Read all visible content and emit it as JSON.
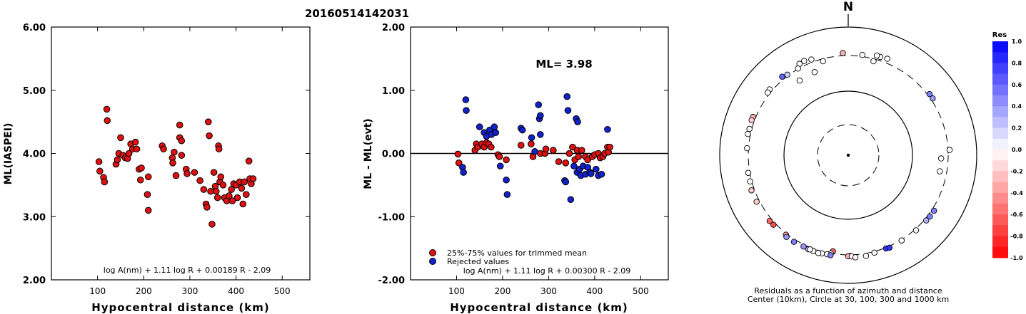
{
  "title": "20160514142031",
  "chart_data": [
    {
      "type": "scatter",
      "ylabel": "ML(IASPEI)",
      "xlabel": "Hypocentral distance (km)",
      "xlim": [
        0,
        560
      ],
      "ylim": [
        2.0,
        6.0
      ],
      "x_ticks": [
        "100",
        "200",
        "300",
        "400",
        "500"
      ],
      "y_ticks": [
        "2.00",
        "3.00",
        "4.00",
        "5.00",
        "6.00"
      ],
      "formula": "log A(nm) + 1.11 log R + 0.00189 R - 2.09",
      "point_color": "#dd1111",
      "points": [
        [
          103,
          3.87
        ],
        [
          105,
          3.72
        ],
        [
          113,
          3.62
        ],
        [
          115,
          3.55
        ],
        [
          120,
          4.7
        ],
        [
          121,
          4.52
        ],
        [
          140,
          3.83
        ],
        [
          143,
          3.9
        ],
        [
          146,
          4.0
        ],
        [
          150,
          4.25
        ],
        [
          155,
          3.97
        ],
        [
          160,
          3.93
        ],
        [
          165,
          3.92
        ],
        [
          168,
          4.0
        ],
        [
          172,
          4.15
        ],
        [
          176,
          4.07
        ],
        [
          182,
          4.18
        ],
        [
          185,
          4.07
        ],
        [
          190,
          3.75
        ],
        [
          193,
          3.58
        ],
        [
          195,
          3.77
        ],
        [
          210,
          3.63
        ],
        [
          208,
          3.35
        ],
        [
          210,
          3.1
        ],
        [
          240,
          4.12
        ],
        [
          243,
          4.07
        ],
        [
          262,
          3.93
        ],
        [
          263,
          3.85
        ],
        [
          266,
          4.02
        ],
        [
          270,
          3.65
        ],
        [
          278,
          4.45
        ],
        [
          278,
          4.25
        ],
        [
          282,
          4.2
        ],
        [
          282,
          3.97
        ],
        [
          292,
          3.75
        ],
        [
          294,
          3.68
        ],
        [
          310,
          3.7
        ],
        [
          322,
          3.57
        ],
        [
          330,
          3.43
        ],
        [
          335,
          3.2
        ],
        [
          337,
          3.15
        ],
        [
          340,
          4.5
        ],
        [
          342,
          4.28
        ],
        [
          345,
          3.4
        ],
        [
          348,
          2.88
        ],
        [
          352,
          3.7
        ],
        [
          355,
          3.48
        ],
        [
          357,
          3.4
        ],
        [
          360,
          3.3
        ],
        [
          362,
          4.12
        ],
        [
          363,
          4.07
        ],
        [
          365,
          3.55
        ],
        [
          367,
          3.63
        ],
        [
          372,
          3.5
        ],
        [
          375,
          3.3
        ],
        [
          380,
          3.25
        ],
        [
          385,
          3.33
        ],
        [
          390,
          3.43
        ],
        [
          392,
          3.25
        ],
        [
          395,
          3.52
        ],
        [
          400,
          3.5
        ],
        [
          403,
          3.3
        ],
        [
          408,
          3.55
        ],
        [
          412,
          3.45
        ],
        [
          415,
          3.2
        ],
        [
          418,
          3.55
        ],
        [
          422,
          3.35
        ],
        [
          428,
          3.88
        ],
        [
          430,
          3.6
        ],
        [
          433,
          3.52
        ],
        [
          437,
          3.6
        ]
      ]
    },
    {
      "type": "scatter",
      "ylabel": "ML - ML(evt)",
      "xlabel": "Hypocentral distance (km)",
      "xlim": [
        0,
        560
      ],
      "ylim": [
        -2.0,
        2.0
      ],
      "x_ticks": [
        "100",
        "200",
        "300",
        "400",
        "500"
      ],
      "y_ticks": [
        "-2.00",
        "-1.00",
        "0.00",
        "1.00",
        "2.00"
      ],
      "annotation": "ML= 3.98",
      "reference_line": 0.0,
      "formula": "log A(nm) + 1.11 log R + 0.00300 R - 2.09",
      "legend": [
        {
          "label": "25%-75% values for trimmed mean",
          "color": "#dd1111"
        },
        {
          "label": "Rejected values",
          "color": "#1122cc"
        }
      ],
      "series": [
        {
          "name": "25%-75% values for trimmed mean",
          "color": "#dd1111",
          "points": [
            [
              103,
              -0.01
            ],
            [
              105,
              -0.15
            ],
            [
              140,
              0.05
            ],
            [
              143,
              0.15
            ],
            [
              146,
              0.1
            ],
            [
              155,
              0.15
            ],
            [
              160,
              0.1
            ],
            [
              165,
              0.17
            ],
            [
              170,
              0.15
            ],
            [
              175,
              0.1
            ],
            [
              190,
              -0.02
            ],
            [
              193,
              -0.05
            ],
            [
              208,
              -0.1
            ],
            [
              240,
              0.13
            ],
            [
              262,
              0.15
            ],
            [
              266,
              -0.05
            ],
            [
              282,
              0.0
            ],
            [
              292,
              0.0
            ],
            [
              294,
              0.07
            ],
            [
              310,
              0.05
            ],
            [
              322,
              -0.13
            ],
            [
              337,
              -0.15
            ],
            [
              345,
              0.0
            ],
            [
              352,
              0.1
            ],
            [
              357,
              -0.1
            ],
            [
              362,
              0.05
            ],
            [
              365,
              -0.05
            ],
            [
              372,
              0.05
            ],
            [
              380,
              -0.05
            ],
            [
              385,
              -0.1
            ],
            [
              395,
              -0.05
            ],
            [
              400,
              -0.02
            ],
            [
              408,
              0.0
            ],
            [
              412,
              -0.07
            ],
            [
              418,
              -0.05
            ],
            [
              422,
              0.0
            ],
            [
              428,
              0.1
            ],
            [
              430,
              0.02
            ],
            [
              433,
              0.1
            ]
          ]
        },
        {
          "name": "Rejected values",
          "color": "#1122cc",
          "points": [
            [
              113,
              -0.22
            ],
            [
              115,
              -0.3
            ],
            [
              120,
              0.85
            ],
            [
              121,
              0.68
            ],
            [
              150,
              0.42
            ],
            [
              160,
              0.33
            ],
            [
              165,
              0.27
            ],
            [
              172,
              0.37
            ],
            [
              176,
              0.3
            ],
            [
              182,
              0.42
            ],
            [
              185,
              0.33
            ],
            [
              195,
              -0.2
            ],
            [
              208,
              -0.42
            ],
            [
              210,
              -0.65
            ],
            [
              240,
              0.4
            ],
            [
              243,
              0.37
            ],
            [
              263,
              0.25
            ],
            [
              270,
              0.03
            ],
            [
              278,
              0.77
            ],
            [
              280,
              0.55
            ],
            [
              282,
              0.6
            ],
            [
              282,
              0.3
            ],
            [
              335,
              -0.43
            ],
            [
              337,
              -0.45
            ],
            [
              340,
              0.9
            ],
            [
              342,
              0.68
            ],
            [
              348,
              -0.73
            ],
            [
              355,
              -0.2
            ],
            [
              360,
              0.55
            ],
            [
              363,
              0.5
            ],
            [
              362,
              -0.3
            ],
            [
              367,
              -0.25
            ],
            [
              370,
              -0.35
            ],
            [
              375,
              -0.2
            ],
            [
              380,
              -0.33
            ],
            [
              385,
              -0.22
            ],
            [
              390,
              -0.3
            ],
            [
              392,
              -0.32
            ],
            [
              403,
              -0.25
            ],
            [
              408,
              -0.35
            ],
            [
              415,
              -0.33
            ],
            [
              428,
              0.38
            ]
          ]
        }
      ]
    },
    {
      "type": "scatter",
      "subtype": "polar",
      "north_label": "N",
      "caption_line1": "Residuals as a function of azimuth and distance",
      "caption_line2": "Center (10km), Circle at 30, 100, 300 and 1000 km",
      "colorbar_title": "Res",
      "colorbar_ticks": [
        "1.0",
        "0.8",
        "0.6",
        "0.4",
        "0.2",
        "0.0",
        "-0.2",
        "-0.4",
        "-0.6",
        "-0.8",
        "-1.0"
      ],
      "stations": [
        [
          8,
          380,
          0.0
        ],
        [
          -3,
          395,
          -0.3
        ],
        [
          18,
          410,
          0.0
        ],
        [
          16,
          415,
          0.0
        ],
        [
          22,
          420,
          0.0
        ],
        [
          -25,
          420,
          0.0
        ],
        [
          -28,
          412,
          0.0
        ],
        [
          -40,
          397,
          0.6
        ],
        [
          -37,
          375,
          0.2
        ],
        [
          -21,
          398,
          0.0
        ],
        [
          -30,
          365,
          0.0
        ],
        [
          -50,
          395,
          0.0
        ],
        [
          -52,
          388,
          0.0
        ],
        [
          -68,
          395,
          -0.3
        ],
        [
          -70,
          398,
          -0.2
        ],
        [
          -75,
          390,
          0.0
        ],
        [
          -78,
          395,
          0.0
        ],
        [
          -86,
          378,
          0.0
        ],
        [
          -100,
          380,
          0.0
        ],
        [
          -105,
          380,
          0.0
        ],
        [
          -110,
          400,
          -0.2
        ],
        [
          -117,
          398,
          -0.2
        ],
        [
          -130,
          395,
          -0.6
        ],
        [
          -133,
          390,
          -0.7
        ],
        [
          -142,
          375,
          -0.4
        ],
        [
          -171,
          330,
          -0.6
        ],
        [
          -170,
          360,
          0.0
        ],
        [
          -168,
          380,
          0.0
        ],
        [
          -170,
          385,
          0.5
        ],
        [
          -165,
          385,
          0.0
        ],
        [
          -160,
          390,
          0.0
        ],
        [
          -163,
          394,
          0.0
        ],
        [
          -157,
          392,
          0.3
        ],
        [
          -158,
          385,
          0.0
        ],
        [
          -154,
          385,
          0.4
        ],
        [
          -148,
          392,
          0.5
        ],
        [
          -143,
          395,
          0.4
        ],
        [
          -181,
          375,
          -0.4
        ],
        [
          -180,
          378,
          -0.3
        ],
        [
          -182,
          380,
          0.0
        ],
        [
          176,
          395,
          0.0
        ],
        [
          170,
          395,
          0.0
        ],
        [
          165,
          375,
          0.0
        ],
        [
          158,
          372,
          0.8
        ],
        [
          156,
          380,
          0.8
        ],
        [
          148,
          370,
          0.0
        ],
        [
          138,
          378,
          0.0
        ],
        [
          130,
          384,
          0.3
        ],
        [
          127,
          389,
          0.5
        ],
        [
          123,
          390,
          0.5
        ],
        [
          92,
          280,
          0.0
        ],
        [
          100,
          280,
          0.0
        ],
        [
          87,
          380,
          0.0
        ],
        [
          56,
          385,
          0.4
        ],
        [
          53,
          385,
          0.5
        ],
        [
          15,
          330,
          0.0
        ],
        [
          -15,
          330,
          0.0
        ],
        [
          -22,
          250,
          0.0
        ],
        [
          -33,
          245,
          0.0
        ]
      ]
    }
  ]
}
